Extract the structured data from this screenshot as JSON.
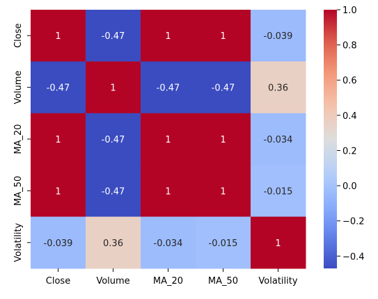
{
  "chart_data": {
    "type": "heatmap",
    "title": "",
    "xlabel": "",
    "ylabel": "",
    "columns": [
      "Close",
      "Volume",
      "MA_20",
      "MA_50",
      "Volatility"
    ],
    "rows": [
      "Close",
      "Volume",
      "MA_20",
      "MA_50",
      "Volatility"
    ],
    "values": [
      [
        1,
        -0.47,
        1,
        1,
        -0.039
      ],
      [
        -0.47,
        1,
        -0.47,
        -0.47,
        0.36
      ],
      [
        1,
        -0.47,
        1,
        1,
        -0.034
      ],
      [
        1,
        -0.47,
        1,
        1,
        -0.015
      ],
      [
        -0.039,
        0.36,
        -0.034,
        -0.015,
        1
      ]
    ],
    "annotations": [
      [
        "1",
        "-0.47",
        "1",
        "1",
        "-0.039"
      ],
      [
        "-0.47",
        "1",
        "-0.47",
        "-0.47",
        "0.36"
      ],
      [
        "1",
        "-0.47",
        "1",
        "1",
        "-0.034"
      ],
      [
        "1",
        "-0.47",
        "1",
        "1",
        "-0.015"
      ],
      [
        "-0.039",
        "0.36",
        "-0.034",
        "-0.015",
        "1"
      ]
    ],
    "colormap": "coolwarm",
    "vmin": -0.47,
    "vmax": 1.0,
    "colorbar": {
      "ticks": [
        1.0,
        0.8,
        0.6,
        0.4,
        0.2,
        0.0,
        -0.2,
        -0.4
      ],
      "tick_labels": [
        "1.0",
        "0.8",
        "0.6",
        "0.4",
        "0.2",
        "0.0",
        "−0.2",
        "−0.4"
      ]
    },
    "grid": false,
    "legend": "colorbar-right"
  }
}
